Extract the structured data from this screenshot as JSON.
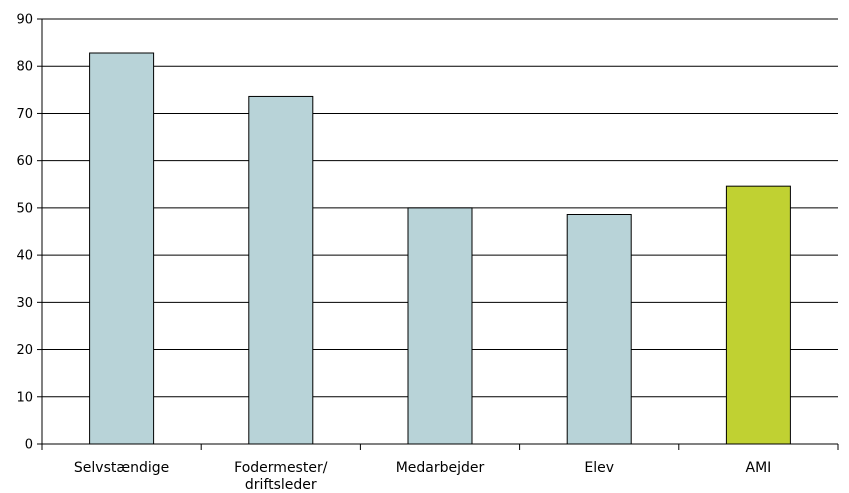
{
  "chart_data": {
    "type": "bar",
    "categories": [
      "Selvstændige",
      "Fodermester/\ndriftsleder",
      "Medarbejder",
      "Elev",
      "AMI"
    ],
    "values": [
      82.8,
      73.6,
      50.0,
      48.6,
      54.6
    ],
    "title": "",
    "xlabel": "",
    "ylabel": "",
    "ylim": [
      0,
      90
    ],
    "yticks": [
      0,
      10,
      20,
      30,
      40,
      50,
      60,
      70,
      80,
      90
    ],
    "grid": true,
    "legend": "none",
    "colors": {
      "bar_default": "#b8d3d8",
      "bar_highlight": "#c0d132",
      "bar_stroke": "#000000",
      "grid": "#000000"
    },
    "highlight_category": "AMI"
  }
}
